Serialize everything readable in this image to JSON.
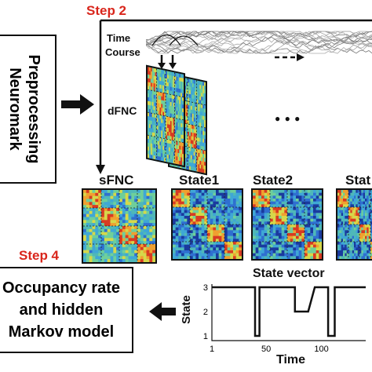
{
  "step2": {
    "label": "Step 2"
  },
  "step4": {
    "label": "Step 4"
  },
  "preprocessing": {
    "line1": "Preprocessing",
    "line2": "Neuromark"
  },
  "timecourse": {
    "line1": "Time",
    "line2": "Course"
  },
  "dfnc": {
    "label": "dFNC"
  },
  "ellipsis": "● ● ●",
  "matrices": [
    {
      "title": "sFNC"
    },
    {
      "title": "State1"
    },
    {
      "title": "State2"
    },
    {
      "title": "Stat"
    }
  ],
  "occupancy": {
    "line1": "Occupancy rate",
    "line2": "and hidden",
    "line3": "Markov model"
  },
  "chart_data": {
    "type": "line",
    "title": "State vector",
    "xlabel": "Time",
    "ylabel": "State",
    "x_ticks": [
      "1",
      "50",
      "100"
    ],
    "y_ticks": [
      "1",
      "2",
      "3"
    ],
    "xlim": [
      1,
      140
    ],
    "ylim": [
      1,
      3
    ],
    "x": [
      1,
      40,
      40,
      44,
      44,
      76,
      76,
      88,
      88,
      94,
      94,
      106,
      106,
      112,
      112,
      140
    ],
    "values": [
      3,
      3,
      1,
      1,
      3,
      3,
      2,
      2,
      2,
      3,
      3,
      3,
      1,
      1,
      3,
      3
    ]
  },
  "colors": {
    "step": "#d9261c",
    "matrix_base": "#4fb8b8",
    "text": "#111111"
  }
}
